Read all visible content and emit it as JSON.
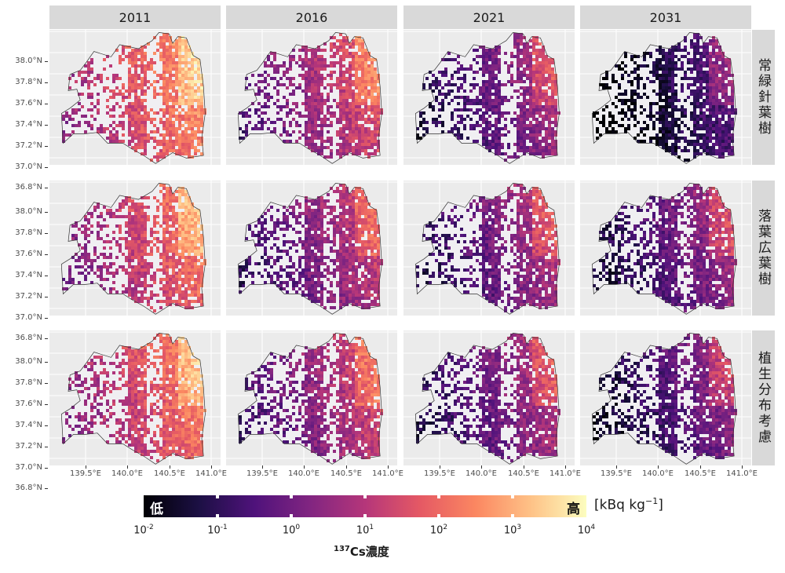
{
  "columns": [
    "2011",
    "2016",
    "2021",
    "2031"
  ],
  "rows": [
    "常緑針葉樹",
    "落葉広葉樹",
    "植生分布考慮"
  ],
  "y_ticks": [
    "38.0°N",
    "37.8°N",
    "37.6°N",
    "37.4°N",
    "37.2°N",
    "37.0°N",
    "36.8°N"
  ],
  "x_ticks": [
    "139.5°E",
    "140.0°E",
    "140.5°E",
    "141.0°E"
  ],
  "legend": {
    "low_label": "低",
    "high_label": "高",
    "tick_bases": [
      "10",
      "10",
      "10",
      "10",
      "10",
      "10",
      "10"
    ],
    "tick_exponents": [
      "-2",
      "-1",
      "0",
      "1",
      "2",
      "3",
      "4"
    ],
    "unit_main": "[kBq kg",
    "unit_exp": "−1",
    "unit_close": "]",
    "title_sup": "137",
    "title_main": "Cs濃度"
  },
  "colors": {
    "scale": [
      "#000004",
      "#1c1044",
      "#4f127b",
      "#812581",
      "#b5367a",
      "#e55964",
      "#fb8761",
      "#fec287",
      "#fcfdbf"
    ],
    "panel_bg": "#ebebeb",
    "strip_bg": "#d9d9d9"
  },
  "map_data": {
    "lon_range": [
      139.1,
      141.15
    ],
    "lat_range": [
      36.72,
      38.03
    ],
    "description_levels": {
      "2011": [
        0.78,
        0.72,
        0.74
      ],
      "2016": [
        0.62,
        0.55,
        0.58
      ],
      "2021": [
        0.48,
        0.5,
        0.5
      ],
      "2031": [
        0.3,
        0.46,
        0.42
      ]
    }
  }
}
